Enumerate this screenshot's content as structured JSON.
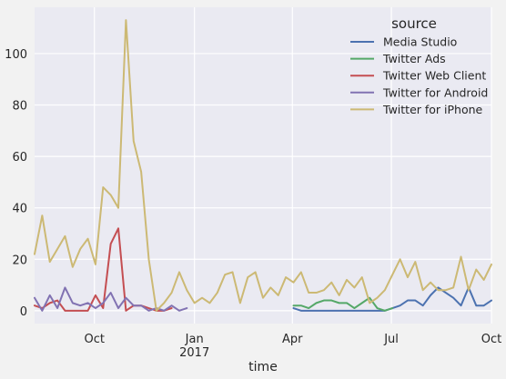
{
  "chart_data": {
    "type": "line",
    "xlabel": "time",
    "ylabel": "",
    "x_type": "date",
    "xlim": [
      "2016-08-07",
      "2017-10-01"
    ],
    "ylim": [
      -5,
      118
    ],
    "grid": true,
    "x_major_ticks": [
      {
        "date": "2016-10-01",
        "label": "Oct",
        "sublabel": ""
      },
      {
        "date": "2017-01-01",
        "label": "Jan",
        "sublabel": "2017"
      },
      {
        "date": "2017-04-01",
        "label": "Apr",
        "sublabel": ""
      },
      {
        "date": "2017-07-01",
        "label": "Jul",
        "sublabel": ""
      },
      {
        "date": "2017-10-01",
        "label": "Oct",
        "sublabel": ""
      }
    ],
    "y_ticks": [
      0,
      20,
      40,
      60,
      80,
      100
    ],
    "legend": {
      "title": "source",
      "placement": "top-right"
    },
    "series": [
      {
        "name": "Media Studio",
        "color": "#4c72b0",
        "points": [
          [
            "2017-04-02",
            1
          ],
          [
            "2017-04-09",
            0
          ],
          [
            "2017-04-16",
            0
          ],
          [
            "2017-04-23",
            0
          ],
          [
            "2017-04-30",
            0
          ],
          [
            "2017-05-07",
            0
          ],
          [
            "2017-05-14",
            0
          ],
          [
            "2017-05-21",
            0
          ],
          [
            "2017-05-28",
            0
          ],
          [
            "2017-06-04",
            0
          ],
          [
            "2017-06-11",
            0
          ],
          [
            "2017-06-18",
            0
          ],
          [
            "2017-06-25",
            0
          ],
          [
            "2017-07-02",
            1
          ],
          [
            "2017-07-09",
            2
          ],
          [
            "2017-07-16",
            4
          ],
          [
            "2017-07-23",
            4
          ],
          [
            "2017-07-30",
            2
          ],
          [
            "2017-08-06",
            6
          ],
          [
            "2017-08-13",
            9
          ],
          [
            "2017-08-20",
            7
          ],
          [
            "2017-08-27",
            5
          ],
          [
            "2017-09-03",
            2
          ],
          [
            "2017-09-10",
            9
          ],
          [
            "2017-09-17",
            2
          ],
          [
            "2017-09-24",
            2
          ],
          [
            "2017-10-01",
            4
          ]
        ]
      },
      {
        "name": "Twitter Ads",
        "color": "#55a868",
        "points": [
          [
            "2017-04-02",
            2
          ],
          [
            "2017-04-09",
            2
          ],
          [
            "2017-04-16",
            1
          ],
          [
            "2017-04-23",
            3
          ],
          [
            "2017-04-30",
            4
          ],
          [
            "2017-05-07",
            4
          ],
          [
            "2017-05-14",
            3
          ],
          [
            "2017-05-21",
            3
          ],
          [
            "2017-05-28",
            1
          ],
          [
            "2017-06-04",
            3
          ],
          [
            "2017-06-11",
            5
          ],
          [
            "2017-06-18",
            1
          ],
          [
            "2017-06-25",
            0
          ],
          [
            "2017-07-02",
            1
          ]
        ]
      },
      {
        "name": "Twitter Web Client",
        "color": "#c44e52",
        "points": [
          [
            "2016-08-07",
            2
          ],
          [
            "2016-08-14",
            1
          ],
          [
            "2016-08-21",
            3
          ],
          [
            "2016-08-28",
            4
          ],
          [
            "2016-09-04",
            0
          ],
          [
            "2016-09-11",
            0
          ],
          [
            "2016-09-18",
            0
          ],
          [
            "2016-09-25",
            0
          ],
          [
            "2016-10-02",
            6
          ],
          [
            "2016-10-09",
            1
          ],
          [
            "2016-10-16",
            26
          ],
          [
            "2016-10-23",
            32
          ],
          [
            "2016-10-30",
            0
          ],
          [
            "2016-11-06",
            2
          ],
          [
            "2016-11-13",
            2
          ],
          [
            "2016-11-20",
            1
          ],
          [
            "2016-11-27",
            0
          ],
          [
            "2016-12-04",
            0
          ],
          [
            "2016-12-11",
            1
          ]
        ]
      },
      {
        "name": "Twitter for Android",
        "color": "#8172b2",
        "points": [
          [
            "2016-08-07",
            5
          ],
          [
            "2016-08-14",
            0
          ],
          [
            "2016-08-21",
            6
          ],
          [
            "2016-08-28",
            1
          ],
          [
            "2016-09-04",
            9
          ],
          [
            "2016-09-11",
            3
          ],
          [
            "2016-09-18",
            2
          ],
          [
            "2016-09-25",
            3
          ],
          [
            "2016-10-02",
            1
          ],
          [
            "2016-10-09",
            3
          ],
          [
            "2016-10-16",
            7
          ],
          [
            "2016-10-23",
            1
          ],
          [
            "2016-10-30",
            5
          ],
          [
            "2016-11-06",
            2
          ],
          [
            "2016-11-13",
            2
          ],
          [
            "2016-11-20",
            0
          ],
          [
            "2016-11-27",
            1
          ],
          [
            "2016-12-04",
            0
          ],
          [
            "2016-12-11",
            2
          ],
          [
            "2016-12-18",
            0
          ],
          [
            "2016-12-25",
            1
          ]
        ]
      },
      {
        "name": "Twitter for iPhone",
        "color": "#ccb974",
        "points": [
          [
            "2016-08-07",
            22
          ],
          [
            "2016-08-14",
            37
          ],
          [
            "2016-08-21",
            19
          ],
          [
            "2016-08-28",
            24
          ],
          [
            "2016-09-04",
            29
          ],
          [
            "2016-09-11",
            17
          ],
          [
            "2016-09-18",
            24
          ],
          [
            "2016-09-25",
            28
          ],
          [
            "2016-10-02",
            18
          ],
          [
            "2016-10-09",
            48
          ],
          [
            "2016-10-16",
            45
          ],
          [
            "2016-10-23",
            40
          ],
          [
            "2016-10-30",
            113
          ],
          [
            "2016-11-06",
            66
          ],
          [
            "2016-11-13",
            54
          ],
          [
            "2016-11-20",
            20
          ],
          [
            "2016-11-27",
            0
          ],
          [
            "2016-12-04",
            3
          ],
          [
            "2016-12-11",
            7
          ],
          [
            "2016-12-18",
            15
          ],
          [
            "2016-12-25",
            8
          ],
          [
            "2017-01-01",
            3
          ],
          [
            "2017-01-08",
            5
          ],
          [
            "2017-01-15",
            3
          ],
          [
            "2017-01-22",
            7
          ],
          [
            "2017-01-29",
            14
          ],
          [
            "2017-02-05",
            15
          ],
          [
            "2017-02-12",
            3
          ],
          [
            "2017-02-19",
            13
          ],
          [
            "2017-02-26",
            15
          ],
          [
            "2017-03-05",
            5
          ],
          [
            "2017-03-12",
            9
          ],
          [
            "2017-03-19",
            6
          ],
          [
            "2017-03-26",
            13
          ],
          [
            "2017-04-02",
            11
          ],
          [
            "2017-04-09",
            15
          ],
          [
            "2017-04-16",
            7
          ],
          [
            "2017-04-23",
            7
          ],
          [
            "2017-04-30",
            8
          ],
          [
            "2017-05-07",
            11
          ],
          [
            "2017-05-14",
            6
          ],
          [
            "2017-05-21",
            12
          ],
          [
            "2017-05-28",
            9
          ],
          [
            "2017-06-04",
            13
          ],
          [
            "2017-06-11",
            3
          ],
          [
            "2017-06-18",
            5
          ],
          [
            "2017-06-25",
            8
          ],
          [
            "2017-07-02",
            14
          ],
          [
            "2017-07-09",
            20
          ],
          [
            "2017-07-16",
            13
          ],
          [
            "2017-07-23",
            19
          ],
          [
            "2017-07-30",
            8
          ],
          [
            "2017-08-06",
            11
          ],
          [
            "2017-08-13",
            8
          ],
          [
            "2017-08-20",
            8
          ],
          [
            "2017-08-27",
            9
          ],
          [
            "2017-09-03",
            21
          ],
          [
            "2017-09-10",
            8
          ],
          [
            "2017-09-17",
            16
          ],
          [
            "2017-09-24",
            12
          ],
          [
            "2017-10-01",
            18
          ]
        ]
      }
    ]
  }
}
